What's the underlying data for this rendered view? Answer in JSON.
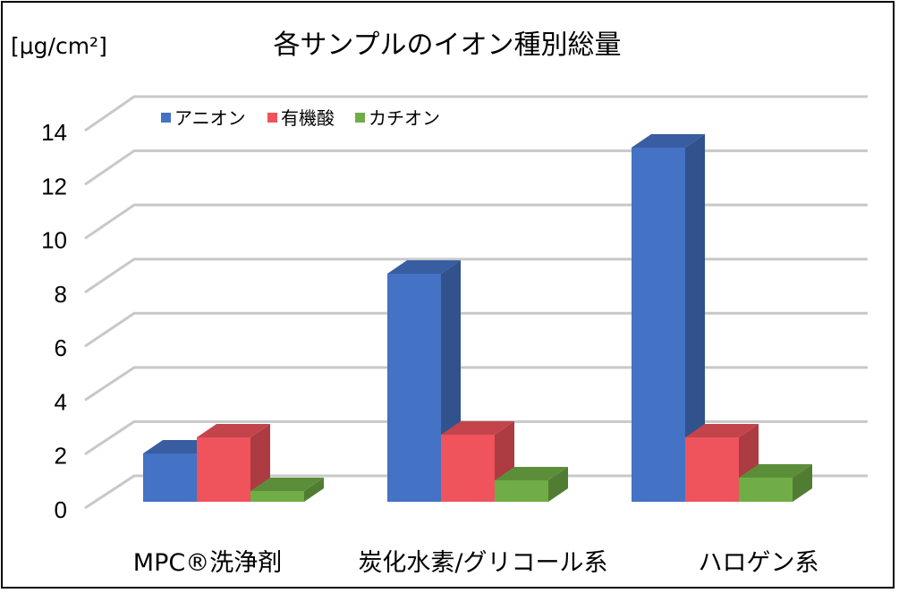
{
  "chart_data": {
    "type": "bar",
    "title": "各サンプルのイオン種別総量",
    "ylabel": "[μg/cm²]",
    "xlabel": "",
    "categories": [
      "MPC®洗浄剤",
      "炭化水素/グリコール系",
      "ハロゲン系"
    ],
    "series": [
      {
        "name": "アニオン",
        "color": "#4472C4",
        "values": [
          1.8,
          8.5,
          13.2
        ]
      },
      {
        "name": "有機酸",
        "color": "#EF535C",
        "values": [
          2.4,
          2.5,
          2.4
        ]
      },
      {
        "name": "カチオン",
        "color": "#70AD47",
        "values": [
          0.4,
          0.8,
          0.9
        ]
      }
    ],
    "ylim": [
      0,
      14
    ],
    "yticks": [
      0,
      2,
      4,
      6,
      8,
      10,
      12,
      14
    ],
    "grid": true,
    "legend_position": "top-left",
    "style": "3d-clustered-column"
  }
}
